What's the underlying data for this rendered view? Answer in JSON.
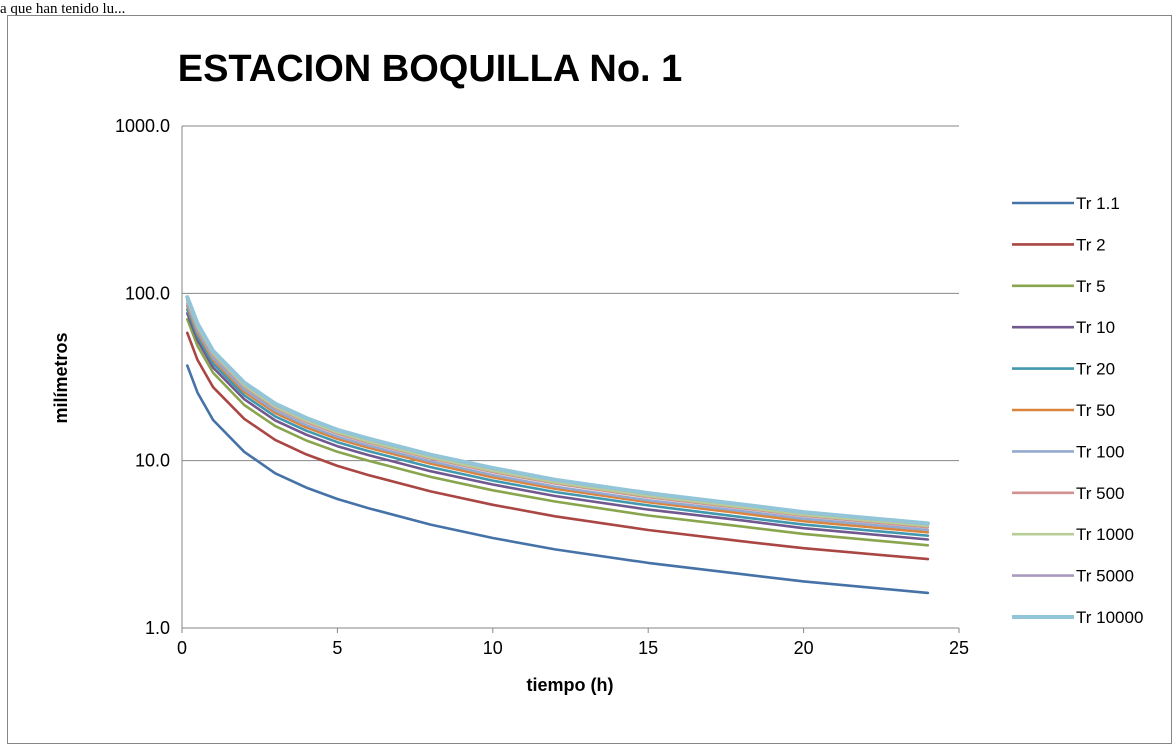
{
  "caption": "a que han tenido lu...",
  "chart_data": {
    "type": "line",
    "title": "ESTACION BOQUILLA No. 1",
    "xlabel": "tiempo (h)",
    "ylabel": "milímetros",
    "xlim": [
      0,
      25
    ],
    "ylim": [
      1,
      1000
    ],
    "yscale": "log",
    "grid": "horizontal",
    "legend_position": "right",
    "x_ticks": [
      0,
      5,
      10,
      15,
      20,
      25
    ],
    "y_ticks": [
      1,
      10,
      100,
      1000
    ],
    "x_tick_labels": [
      "0",
      "5",
      "10",
      "15",
      "20",
      "25"
    ],
    "y_tick_labels": [
      "1.0",
      "10.0",
      "100.0",
      "1000.0"
    ],
    "x": [
      0.17,
      0.5,
      1,
      2,
      3,
      4,
      5,
      6,
      8,
      10,
      12,
      15,
      18,
      20,
      24
    ],
    "series": [
      {
        "name": "Tr 1.1",
        "color": "#4572a7",
        "values": [
          37.0,
          25.5,
          17.5,
          11.3,
          8.4,
          6.9,
          5.9,
          5.2,
          4.15,
          3.45,
          2.95,
          2.45,
          2.1,
          1.9,
          1.62
        ]
      },
      {
        "name": "Tr 2",
        "color": "#aa4643",
        "values": [
          58.0,
          40.0,
          27.5,
          17.8,
          13.3,
          10.9,
          9.3,
          8.2,
          6.55,
          5.45,
          4.65,
          3.85,
          3.3,
          3.0,
          2.58
        ]
      },
      {
        "name": "Tr 5",
        "color": "#89a54e",
        "values": [
          70.0,
          48.5,
          33.5,
          21.5,
          16.1,
          13.2,
          11.3,
          10.0,
          8.0,
          6.65,
          5.7,
          4.7,
          4.05,
          3.65,
          3.12
        ]
      },
      {
        "name": "Tr 10",
        "color": "#71588f",
        "values": [
          76.0,
          52.5,
          36.0,
          23.3,
          17.4,
          14.3,
          12.2,
          10.8,
          8.65,
          7.2,
          6.15,
          5.1,
          4.4,
          3.95,
          3.38
        ]
      },
      {
        "name": "Tr 20",
        "color": "#4198af",
        "values": [
          80.0,
          55.5,
          38.0,
          24.6,
          18.4,
          15.1,
          12.9,
          11.4,
          9.15,
          7.6,
          6.5,
          5.4,
          4.6,
          4.15,
          3.56
        ]
      },
      {
        "name": "Tr 50",
        "color": "#db843d",
        "values": [
          84.0,
          58.0,
          40.0,
          25.8,
          19.3,
          15.8,
          13.5,
          11.95,
          9.6,
          7.95,
          6.8,
          5.65,
          4.85,
          4.35,
          3.73
        ]
      },
      {
        "name": "Tr 100",
        "color": "#93a9cf",
        "values": [
          86.5,
          60.0,
          41.2,
          26.6,
          19.9,
          16.3,
          13.9,
          12.3,
          9.9,
          8.2,
          7.0,
          5.8,
          5.0,
          4.5,
          3.85
        ]
      },
      {
        "name": "Tr 500",
        "color": "#d19392",
        "values": [
          90.0,
          62.5,
          43.0,
          27.7,
          20.7,
          17.0,
          14.5,
          12.8,
          10.3,
          8.55,
          7.3,
          6.05,
          5.2,
          4.68,
          4.0
        ]
      },
      {
        "name": "Tr 1000",
        "color": "#b9cd96",
        "values": [
          91.5,
          63.5,
          43.7,
          28.2,
          21.0,
          17.3,
          14.75,
          13.0,
          10.45,
          8.7,
          7.42,
          6.15,
          5.28,
          4.75,
          4.07
        ]
      },
      {
        "name": "Tr 5000",
        "color": "#a99bbd",
        "values": [
          94.0,
          65.2,
          44.8,
          29.0,
          21.6,
          17.8,
          15.15,
          13.4,
          10.75,
          8.95,
          7.63,
          6.33,
          5.43,
          4.88,
          4.18
        ]
      },
      {
        "name": "Tr 10000",
        "color": "#92c5d8",
        "values": [
          95.0,
          66.0,
          45.3,
          29.3,
          21.9,
          18.0,
          15.3,
          13.55,
          10.85,
          9.05,
          7.7,
          6.4,
          5.48,
          4.93,
          4.22
        ]
      }
    ]
  }
}
